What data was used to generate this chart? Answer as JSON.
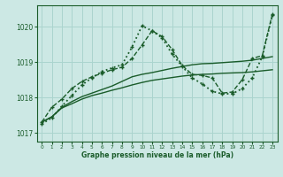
{
  "bg_color": "#cce8e4",
  "grid_color": "#aad4ce",
  "line_color": "#1a5c2a",
  "xlabel": "Graphe pression niveau de la mer (hPa)",
  "ylim": [
    1016.75,
    1020.6
  ],
  "xlim": [
    -0.5,
    23.5
  ],
  "yticks": [
    1017,
    1018,
    1019,
    1020
  ],
  "xticks": [
    0,
    1,
    2,
    3,
    4,
    5,
    6,
    7,
    8,
    9,
    10,
    11,
    12,
    13,
    14,
    15,
    16,
    17,
    18,
    19,
    20,
    21,
    22,
    23
  ],
  "series": [
    {
      "x": [
        0,
        1,
        2,
        3,
        4,
        5,
        6,
        7,
        8,
        9,
        10,
        11,
        12,
        13,
        14,
        15,
        16,
        17,
        18,
        19,
        20,
        21,
        22,
        23
      ],
      "y": [
        1017.3,
        1017.45,
        1017.7,
        1017.82,
        1017.95,
        1018.05,
        1018.12,
        1018.2,
        1018.27,
        1018.35,
        1018.42,
        1018.48,
        1018.52,
        1018.56,
        1018.6,
        1018.63,
        1018.65,
        1018.66,
        1018.68,
        1018.69,
        1018.7,
        1018.72,
        1018.75,
        1018.78
      ],
      "linestyle": "-",
      "linewidth": 1.0,
      "marker": null
    },
    {
      "x": [
        0,
        1,
        2,
        3,
        4,
        5,
        6,
        7,
        8,
        9,
        10,
        11,
        12,
        13,
        14,
        15,
        16,
        17,
        18,
        19,
        20,
        21,
        22,
        23
      ],
      "y": [
        1017.3,
        1017.45,
        1017.72,
        1017.88,
        1018.02,
        1018.12,
        1018.22,
        1018.32,
        1018.45,
        1018.58,
        1018.65,
        1018.7,
        1018.76,
        1018.82,
        1018.87,
        1018.92,
        1018.95,
        1018.96,
        1018.98,
        1019.0,
        1019.02,
        1019.05,
        1019.1,
        1019.15
      ],
      "linestyle": "-",
      "linewidth": 1.0,
      "marker": null
    },
    {
      "x": [
        0,
        1,
        2,
        3,
        4,
        5,
        6,
        7,
        8,
        9,
        10,
        11,
        12,
        13,
        14,
        15,
        16,
        17,
        18,
        19,
        20,
        21,
        22,
        23
      ],
      "y": [
        1017.25,
        1017.42,
        1017.75,
        1018.05,
        1018.35,
        1018.55,
        1018.73,
        1018.83,
        1018.92,
        1019.42,
        1020.02,
        1019.88,
        1019.68,
        1019.22,
        1018.88,
        1018.55,
        1018.38,
        1018.17,
        1018.1,
        1018.1,
        1018.25,
        1018.55,
        1019.15,
        1020.32
      ],
      "linestyle": ":",
      "linewidth": 1.3,
      "marker": "+"
    },
    {
      "x": [
        0,
        1,
        2,
        3,
        4,
        5,
        6,
        7,
        8,
        9,
        10,
        11,
        12,
        13,
        14,
        15,
        16,
        17,
        18,
        19,
        20,
        21,
        22,
        23
      ],
      "y": [
        1017.3,
        1017.72,
        1017.95,
        1018.25,
        1018.45,
        1018.58,
        1018.68,
        1018.78,
        1018.85,
        1019.1,
        1019.48,
        1019.88,
        1019.72,
        1019.35,
        1018.9,
        1018.65,
        1018.62,
        1018.55,
        1018.12,
        1018.15,
        1018.5,
        1019.1,
        1019.18,
        1020.35
      ],
      "linestyle": "--",
      "linewidth": 1.0,
      "marker": "+"
    }
  ]
}
